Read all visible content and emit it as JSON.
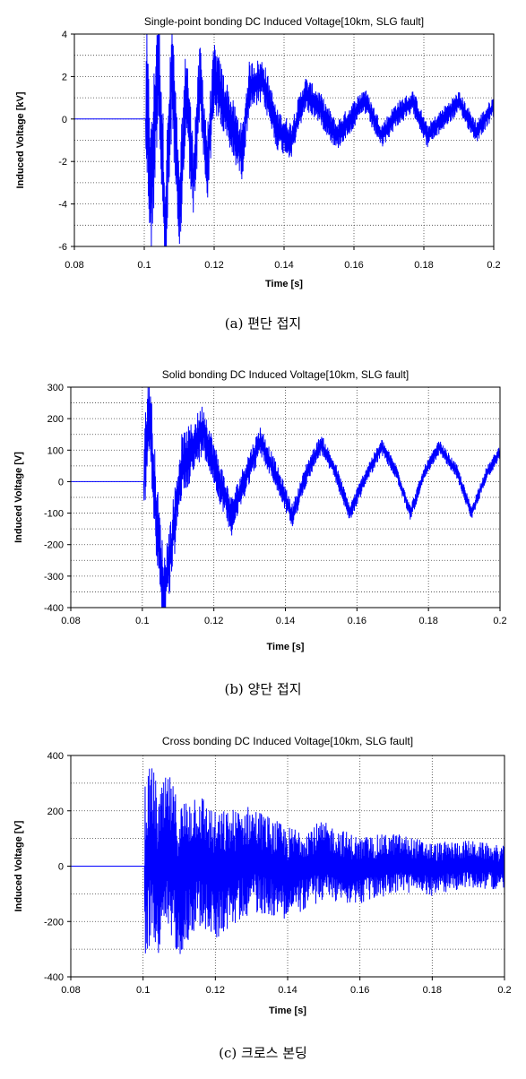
{
  "chart_data": [
    {
      "type": "line",
      "title": "Single-point bonding DC Induced Voltage[10km, SLG fault]",
      "xlabel": "Time [s]",
      "ylabel": "Induced Voltage [kV]",
      "xlim": [
        0.08,
        0.2
      ],
      "ylim": [
        -6,
        4
      ],
      "xticks": [
        0.08,
        0.1,
        0.12,
        0.14,
        0.16,
        0.18,
        0.2
      ],
      "xtick_labels": [
        "0.08",
        "0.1",
        "0.12",
        "0.14",
        "0.16",
        "0.18",
        "0.2"
      ],
      "yticks": [
        4,
        2,
        0,
        -2,
        -4,
        -6
      ],
      "ytick_labels": [
        "4",
        "2",
        "0",
        "-2",
        "-4",
        "-6"
      ],
      "grid": true,
      "color": "#0000ff",
      "series": [
        {
          "x": [
            0.08,
            0.1,
            0.1,
            0.102,
            0.104,
            0.106,
            0.108,
            0.11,
            0.112,
            0.114,
            0.116,
            0.118,
            0.12,
            0.124,
            0.128,
            0.13,
            0.134,
            0.138,
            0.142,
            0.146,
            0.15,
            0.155,
            0.159,
            0.163,
            0.168,
            0.172,
            0.177,
            0.181,
            0.186,
            0.19,
            0.195,
            0.2
          ],
          "y": [
            0,
            0,
            2.8,
            -3.5,
            3.2,
            -5.2,
            2.5,
            -4.8,
            1.6,
            -3.0,
            1.8,
            -2.3,
            2.0,
            0.1,
            -1.6,
            1.5,
            1.8,
            -0.5,
            -1.0,
            1.2,
            0.6,
            -0.8,
            0.0,
            0.9,
            -0.8,
            0.2,
            0.8,
            -0.8,
            0.1,
            0.8,
            -0.6,
            0.6
          ]
        }
      ]
    },
    {
      "type": "line",
      "title": "Solid bonding DC Induced Voltage[10km, SLG fault]",
      "xlabel": "Time [s]",
      "ylabel": "Induced Voltage [V]",
      "xlim": [
        0.08,
        0.2
      ],
      "ylim": [
        -400,
        300
      ],
      "xticks": [
        0.08,
        0.1,
        0.12,
        0.14,
        0.16,
        0.18,
        0.2
      ],
      "xtick_labels": [
        "0.08",
        "0.1",
        "0.12",
        "0.14",
        "0.16",
        "0.18",
        "0.2"
      ],
      "yticks": [
        300,
        200,
        100,
        0,
        -100,
        -200,
        -300,
        -400
      ],
      "ytick_labels": [
        "300",
        "200",
        "100",
        "0",
        "-100",
        "-200",
        "-300",
        "-400"
      ],
      "grid": true,
      "color": "#0000ff",
      "series": [
        {
          "x": [
            0.08,
            0.1,
            0.1,
            0.102,
            0.104,
            0.106,
            0.108,
            0.111,
            0.114,
            0.117,
            0.121,
            0.125,
            0.129,
            0.133,
            0.137,
            0.142,
            0.146,
            0.15,
            0.154,
            0.158,
            0.163,
            0.167,
            0.171,
            0.175,
            0.179,
            0.183,
            0.188,
            0.192,
            0.196,
            0.2
          ],
          "y": [
            0,
            0,
            0,
            220,
            -120,
            -360,
            -220,
            50,
            100,
            170,
            20,
            -110,
            20,
            130,
            30,
            -110,
            30,
            120,
            30,
            -100,
            30,
            110,
            30,
            -100,
            30,
            110,
            30,
            -100,
            20,
            95
          ]
        }
      ]
    },
    {
      "type": "line",
      "title": "Cross bonding DC Induced Voltage[10km, SLG fault]",
      "xlabel": "Time [s]",
      "ylabel": "Induced Voltage [V]",
      "xlim": [
        0.08,
        0.2
      ],
      "ylim": [
        -400,
        400
      ],
      "xticks": [
        0.08,
        0.1,
        0.12,
        0.14,
        0.16,
        0.18,
        0.2
      ],
      "xtick_labels": [
        "0.08",
        "0.1",
        "0.12",
        "0.14",
        "0.16",
        "0.18",
        "0.2"
      ],
      "yticks": [
        400,
        200,
        0,
        -200,
        -400
      ],
      "ytick_labels": [
        "400",
        "200",
        "0",
        "-200",
        "-400"
      ],
      "grid": true,
      "color": "#0000ff",
      "series": [
        {
          "x": [
            0.08,
            0.1,
            0.1,
            0.103,
            0.104,
            0.107,
            0.11,
            0.115,
            0.12,
            0.13,
            0.14,
            0.15,
            0.16,
            0.17,
            0.18,
            0.19,
            0.2
          ],
          "y": [
            0,
            0,
            0,
            340,
            -350,
            320,
            -300,
            230,
            -230,
            180,
            -170,
            120,
            -110,
            80,
            -70,
            50,
            -40
          ]
        }
      ]
    }
  ],
  "captions": [
    "(a) 편단 접지",
    "(b) 양단 접지",
    "(c) 크로스 본딩"
  ]
}
